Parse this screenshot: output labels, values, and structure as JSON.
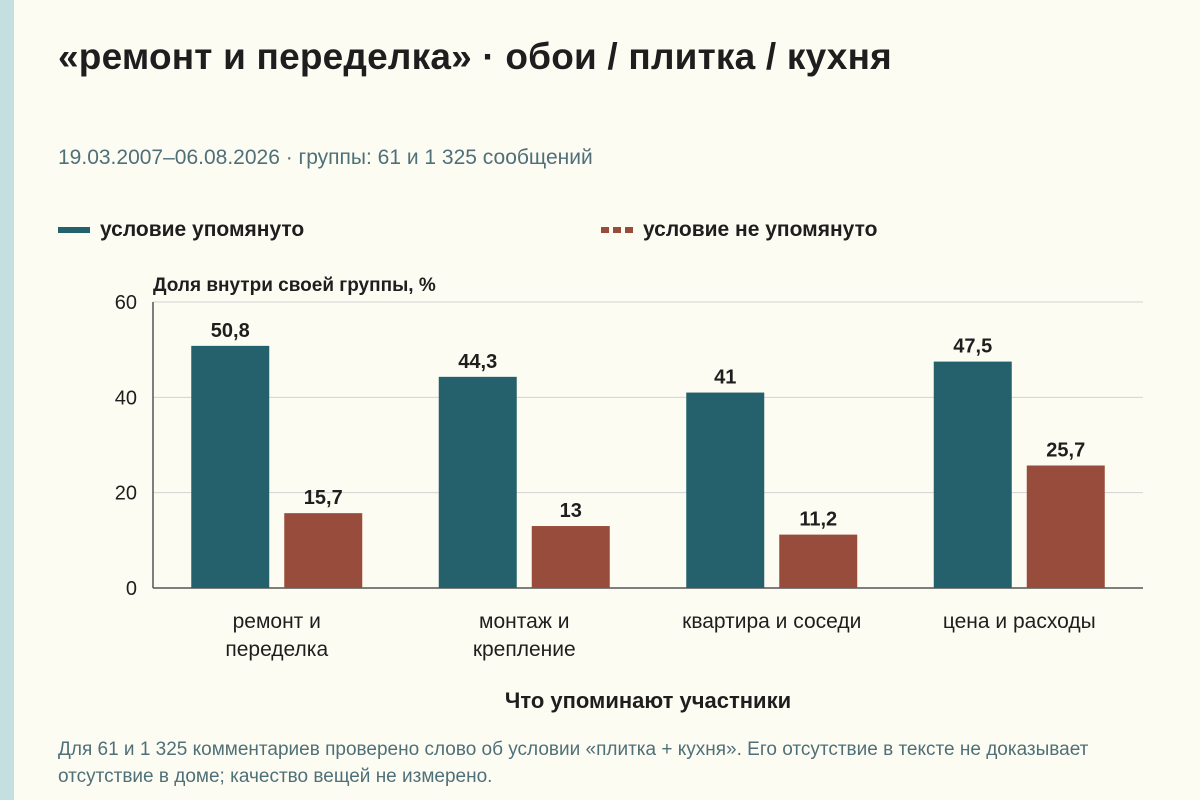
{
  "title": "«ремонт и переделка» · обои / плитка / кухня",
  "subtitle": "19.03.2007–06.08.2026 · группы: 61 и 1 325 сообщений",
  "footnote": "Для 61 и 1 325 комментариев проверено слово об условии «плитка + кухня». Его отсутствие в тексте не доказывает отсутствие в доме; качество вещей не измерено.",
  "colors": {
    "background": "#fdfcf3",
    "strip": "#c3dfe0",
    "series1": "#24616d",
    "series2": "#984c3b",
    "muted": "#4f7078"
  },
  "chart_data": {
    "type": "bar",
    "ylabel": "Доля внутри своей группы, %",
    "xlabel": "Что упоминают участники",
    "ylim": [
      0,
      60
    ],
    "yticks": [
      0,
      20,
      40,
      60
    ],
    "grid": true,
    "legend_position": "top",
    "categories": [
      [
        "ремонт и",
        "переделка"
      ],
      [
        "монтаж и",
        "крепление"
      ],
      [
        "квартира и соседи"
      ],
      [
        "цена и расходы"
      ]
    ],
    "series": [
      {
        "name": "условие упомянуто",
        "values": [
          50.8,
          44.3,
          41,
          47.5
        ],
        "labels": [
          "50,8",
          "44,3",
          "41",
          "47,5"
        ],
        "color": "#24616d"
      },
      {
        "name": "условие не упомянуто",
        "values": [
          15.7,
          13,
          11.2,
          25.7
        ],
        "labels": [
          "15,7",
          "13",
          "11,2",
          "25,7"
        ],
        "color": "#984c3b"
      }
    ]
  }
}
